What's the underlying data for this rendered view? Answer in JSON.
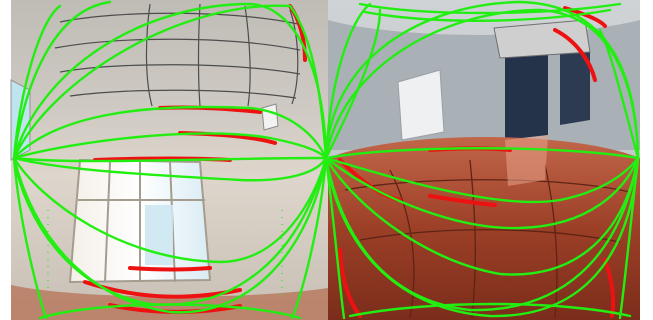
{
  "figure": {
    "panels": [
      {
        "name": "left-panorama-panel"
      },
      {
        "name": "right-panorama-panel"
      }
    ],
    "colors": {
      "background": "#ffffff",
      "wall": "#d9d2c8",
      "ceiling": "#c9c7c3",
      "window_glass": "#cde7f2",
      "floor": "#a84a2e",
      "overlay_green": "#22ee11",
      "overlay_red": "#ee1111"
    }
  }
}
